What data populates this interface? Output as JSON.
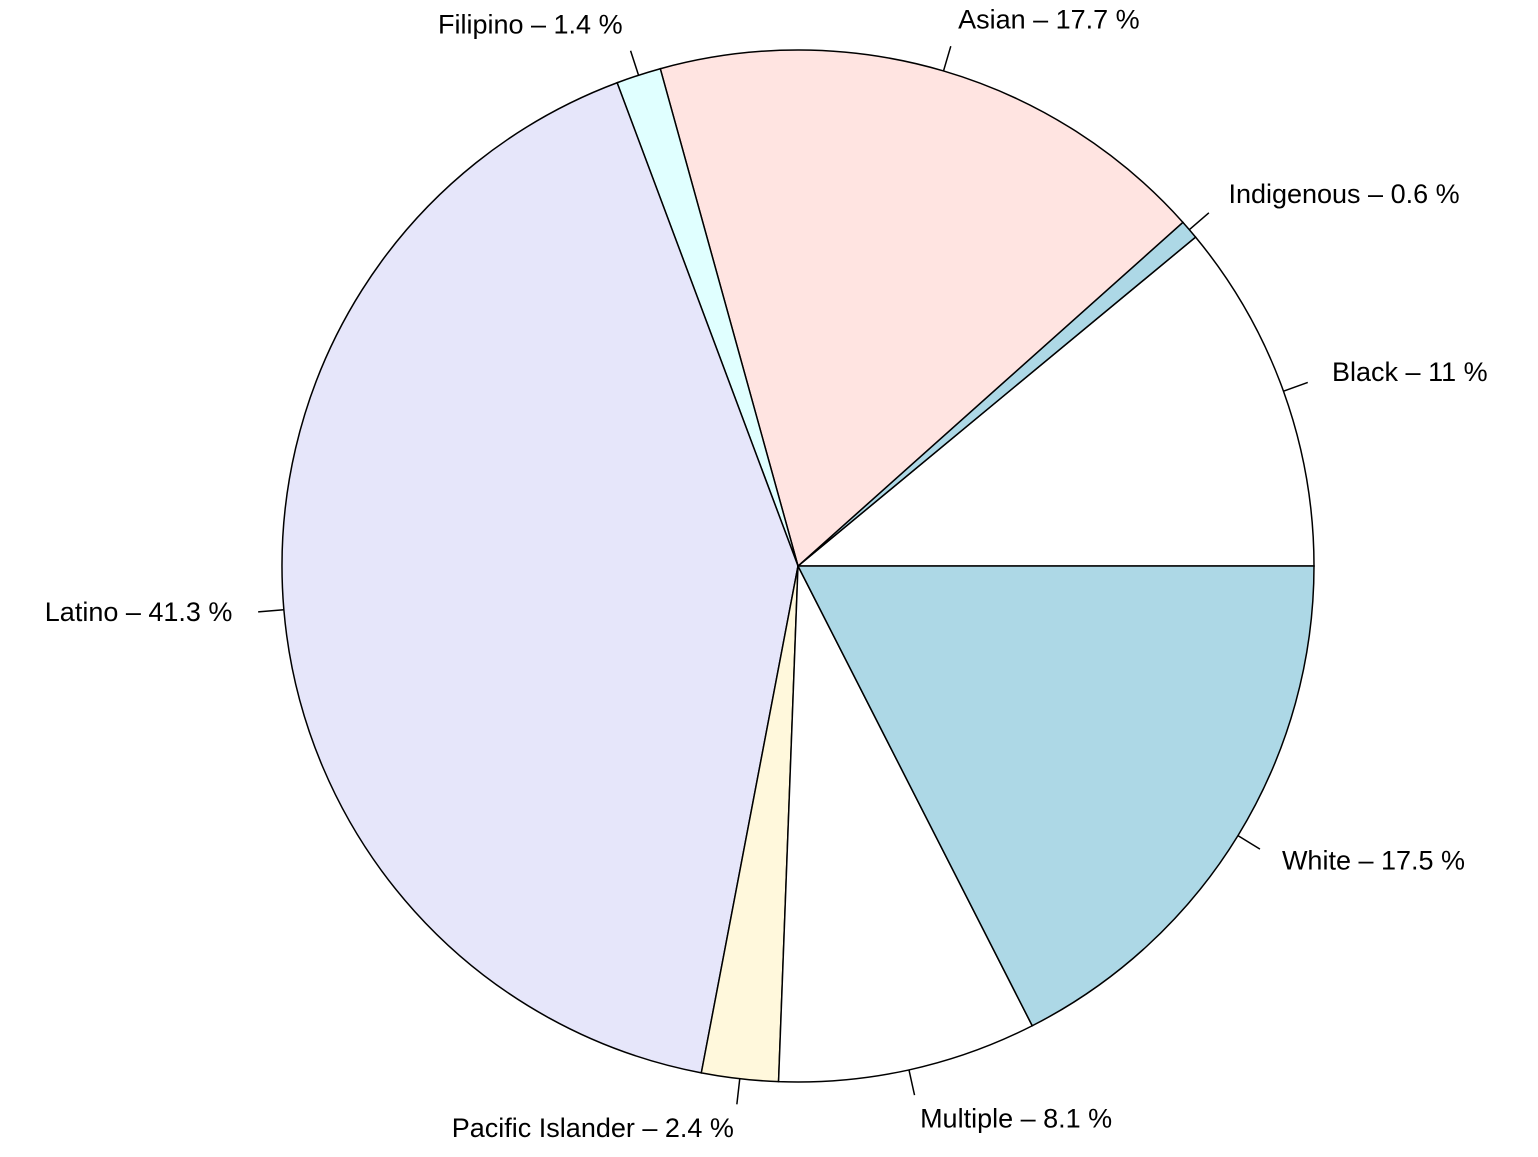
{
  "chart_data": {
    "type": "pie",
    "labels": [
      "Black – 11 %",
      "Indigenous – 0.6 %",
      "Asian – 17.7 %",
      "Filipino – 1.4 %",
      "Latino – 41.3 %",
      "Pacific Islander – 2.4 %",
      "Multiple – 8.1 %",
      "White – 17.5 %"
    ],
    "values": [
      11,
      0.6,
      17.7,
      1.4,
      41.3,
      2.4,
      8.1,
      17.5
    ],
    "colors": [
      "#ffffff",
      "#add8e6",
      "#ffe4e1",
      "#e0ffff",
      "#e6e6fa",
      "#fff8dc",
      "#ffffff",
      "#add8e6"
    ]
  }
}
